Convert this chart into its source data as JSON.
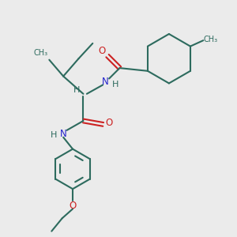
{
  "bg_color": "#ebebeb",
  "bond_color": "#2d6b5e",
  "N_color": "#2222cc",
  "O_color": "#cc2222",
  "lw": 1.5,
  "figsize": [
    3.0,
    3.0
  ],
  "dpi": 100,
  "xlim": [
    0,
    10
  ],
  "ylim": [
    0,
    10
  ]
}
